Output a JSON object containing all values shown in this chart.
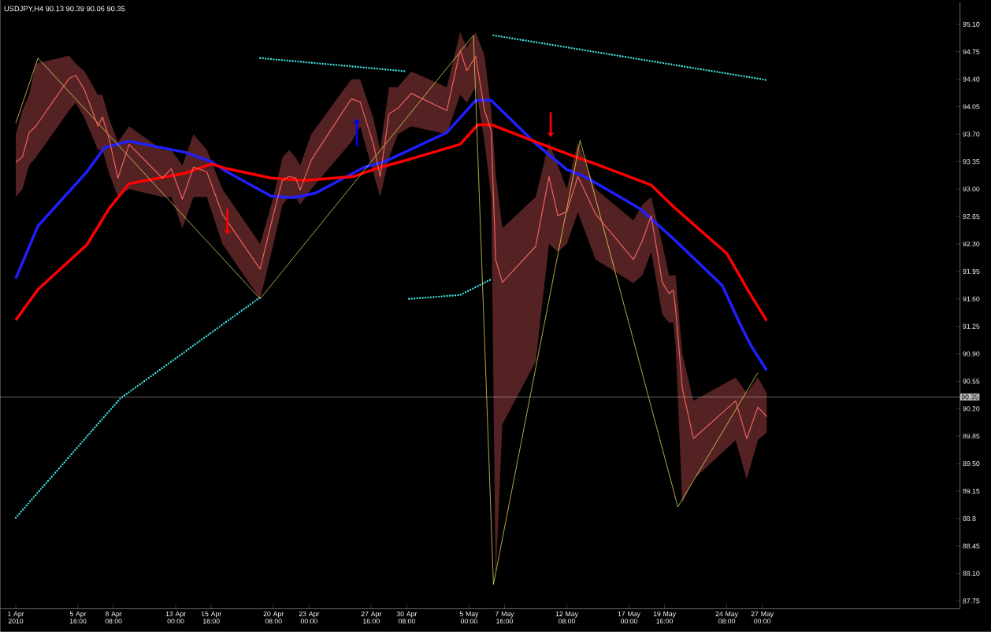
{
  "chart_data": {
    "type": "line",
    "title": "USDJPY,H4  90.13 90.39 90.06 90.35",
    "xlim": [
      "2010-03-30T20:00",
      "2010-06-10T20:00"
    ],
    "ylim": [
      87.65,
      95.38
    ],
    "xticks": [
      {
        "value": "2010-04-01T00:00",
        "label": "1 Apr 2010"
      },
      {
        "value": "2010-04-05T16:00",
        "label": "5 Apr 16:00"
      },
      {
        "value": "2010-04-08T08:00",
        "label": "8 Apr 08:00"
      },
      {
        "value": "2010-04-13T00:00",
        "label": "13 Apr 00:00"
      },
      {
        "value": "2010-04-15T16:00",
        "label": "15 Apr 16:00"
      },
      {
        "value": "2010-04-20T08:00",
        "label": "20 Apr 08:00"
      },
      {
        "value": "2010-04-23T00:00",
        "label": "23 Apr 00:00"
      },
      {
        "value": "2010-04-27T16:00",
        "label": "27 Apr 16:00"
      },
      {
        "value": "2010-04-30T08:00",
        "label": "30 Apr 08:00"
      },
      {
        "value": "2010-05-05T00:00",
        "label": "5 May 00:00"
      },
      {
        "value": "2010-05-07T16:00",
        "label": "7 May 16:00"
      },
      {
        "value": "2010-05-12T08:00",
        "label": "12 May 08:00"
      },
      {
        "value": "2010-05-17T00:00",
        "label": "17 May 00:00"
      },
      {
        "value": "2010-05-19T16:00",
        "label": "19 May 16:00"
      },
      {
        "value": "2010-05-24T08:00",
        "label": "24 May 08:00"
      },
      {
        "value": "2010-05-27T00:00",
        "label": "27 May 00:00"
      }
    ],
    "yticks": [
      87.75,
      {
        "value": 88.1,
        "label": "88.10"
      },
      88.45,
      88.8,
      89.15,
      {
        "value": 89.5,
        "label": "89.50"
      },
      89.85,
      {
        "value": 90.2,
        "label": "90.20"
      },
      90.55,
      {
        "value": 90.9,
        "label": "90.90"
      },
      91.25,
      {
        "value": 91.6,
        "label": "91.60"
      },
      91.95,
      {
        "value": 92.3,
        "label": "92.30"
      },
      92.65,
      {
        "value": 93.0,
        "label": "93.00"
      },
      93.35,
      {
        "value": 93.7,
        "label": "93.70"
      },
      94.05,
      {
        "value": 94.4,
        "label": "94.40"
      },
      94.75,
      {
        "value": 95.1,
        "label": "95.10"
      }
    ],
    "ref_lines": [
      {
        "axis": "y",
        "value": 90.35,
        "label": "90.35",
        "color": "#c0c0c0"
      }
    ],
    "series": [
      {
        "color": "#40e0e0",
        "line_style": "dotted",
        "x": [
          "2010-04-01T00:00",
          "2010-04-08T20:00",
          "2010-04-19T08:00"
        ],
        "values": [
          88.81,
          90.33,
          91.62
        ]
      },
      {
        "color": "#40e0e0",
        "line_style": "dotted",
        "x": [
          "2010-04-19T08:00",
          "2010-04-30T08:00"
        ],
        "values": [
          94.67,
          94.5
        ]
      },
      {
        "color": "#40e0e0",
        "line_style": "dotted",
        "x": [
          "2010-04-30T12:00",
          "2010-05-04T08:00",
          "2010-05-06T16:00"
        ],
        "values": [
          91.6,
          91.65,
          91.85
        ]
      },
      {
        "color": "#40e0e0",
        "line_style": "dotted",
        "x": [
          "2010-05-06T20:00",
          "2010-05-27T08:00"
        ],
        "values": [
          94.96,
          94.39
        ]
      },
      {
        "color": "#2020ff",
        "x": [
          "2010-04-01T00:00",
          "2010-04-02T16:00",
          "2010-04-06T08:00",
          "2010-04-07T16:00",
          "2010-04-09T12:00",
          "2010-04-13T16:00",
          "2010-04-15T16:00",
          "2010-04-16T20:00",
          "2010-04-20T04:00",
          "2010-04-21T20:00",
          "2010-04-23T12:00",
          "2010-04-27T04:00",
          "2010-04-28T16:00",
          "2010-05-03T08:00",
          "2010-05-05T12:00",
          "2010-05-06T16:00",
          "2010-05-10T00:00",
          "2010-05-12T08:00",
          "2010-05-13T16:00",
          "2010-05-17T20:00",
          "2010-05-20T12:00",
          "2010-05-24T00:00",
          "2010-05-25T08:00",
          "2010-05-26T04:00",
          "2010-05-27T08:00"
        ],
        "values": [
          91.86,
          92.53,
          93.22,
          93.53,
          93.61,
          93.47,
          93.35,
          93.22,
          92.91,
          92.89,
          92.95,
          93.28,
          93.35,
          93.72,
          94.13,
          94.13,
          93.58,
          93.25,
          93.16,
          92.75,
          92.34,
          91.77,
          91.28,
          91.0,
          90.69
        ]
      },
      {
        "color": "#ff0000",
        "x": [
          "2010-04-01T00:00",
          "2010-04-02T16:00",
          "2010-04-06T08:00",
          "2010-04-08T00:00",
          "2010-04-09T12:00",
          "2010-04-13T16:00",
          "2010-04-15T16:00",
          "2010-04-16T20:00",
          "2010-04-20T04:00",
          "2010-04-22T16:00",
          "2010-04-26T08:00",
          "2010-04-28T00:00",
          "2010-04-30T08:00",
          "2010-05-04T08:00",
          "2010-05-05T16:00",
          "2010-05-06T16:00",
          "2010-05-10T08:00",
          "2010-05-13T00:00",
          "2010-05-14T16:00",
          "2010-05-18T16:00",
          "2010-05-20T12:00",
          "2010-05-24T08:00",
          "2010-05-26T00:00",
          "2010-05-27T08:00"
        ],
        "values": [
          91.33,
          91.72,
          92.29,
          92.75,
          93.07,
          93.2,
          93.32,
          93.26,
          93.14,
          93.11,
          93.16,
          93.26,
          93.37,
          93.57,
          93.82,
          93.82,
          93.58,
          93.41,
          93.31,
          93.05,
          92.75,
          92.18,
          91.69,
          91.32
        ]
      },
      {
        "color": "#ffff66",
        "x": [
          "2010-04-01T00:00",
          "2010-04-02T16:00",
          "2010-04-19T08:00",
          "2010-05-05T08:00",
          "2010-05-06T20:00",
          "2010-05-13T08:00",
          "2010-05-20T16:00",
          "2010-05-26T16:00"
        ],
        "values": [
          93.84,
          94.67,
          91.6,
          94.96,
          87.96,
          93.62,
          88.95,
          90.66
        ]
      },
      {
        "color": "#f06060",
        "x": [
          "2010-04-01T00:00",
          "2010-04-01T12:00",
          "2010-04-02T00:00",
          "2010-04-02T12:00",
          "2010-04-05T00:00",
          "2010-04-05T12:00",
          "2010-04-06T04:00",
          "2010-04-07T04:00",
          "2010-04-07T12:00",
          "2010-04-08T00:00",
          "2010-04-08T16:00",
          "2010-04-09T12:00",
          "2010-04-12T00:00",
          "2010-04-12T16:00",
          "2010-04-13T12:00",
          "2010-04-14T08:00",
          "2010-04-15T08:00",
          "2010-04-16T12:00",
          "2010-04-19T08:00",
          "2010-04-20T08:00",
          "2010-04-21T00:00",
          "2010-04-21T12:00",
          "2010-04-22T00:00",
          "2010-04-22T08:00",
          "2010-04-23T04:00",
          "2010-04-26T04:00",
          "2010-04-26T20:00",
          "2010-04-27T20:00",
          "2010-04-28T08:00",
          "2010-04-29T00:00",
          "2010-04-29T16:00",
          "2010-04-30T16:00",
          "2010-05-03T08:00",
          "2010-05-04T08:00",
          "2010-05-04T20:00",
          "2010-05-05T12:00",
          "2010-05-06T04:00",
          "2010-05-06T16:00",
          "2010-05-07T00:00",
          "2010-05-07T12:00",
          "2010-05-10T00:00",
          "2010-05-11T00:00",
          "2010-05-11T16:00",
          "2010-05-12T08:00",
          "2010-05-13T04:00",
          "2010-05-14T12:00",
          "2010-05-17T08:00",
          "2010-05-18T00:00",
          "2010-05-18T16:00",
          "2010-05-19T12:00",
          "2010-05-20T00:00",
          "2010-05-20T08:00",
          "2010-05-20T12:00",
          "2010-05-21T00:00",
          "2010-05-21T20:00",
          "2010-05-25T00:00",
          "2010-05-25T20:00",
          "2010-05-26T16:00",
          "2010-05-27T08:00"
        ],
        "values": [
          93.34,
          93.41,
          93.72,
          93.8,
          94.41,
          94.45,
          94.26,
          93.8,
          93.92,
          93.64,
          93.14,
          93.57,
          93.14,
          93.26,
          92.87,
          93.28,
          93.22,
          92.68,
          91.98,
          92.68,
          93.11,
          93.16,
          93.14,
          92.99,
          93.37,
          94.15,
          94.11,
          93.57,
          93.16,
          93.96,
          94.03,
          94.22,
          94.0,
          94.77,
          94.51,
          94.69,
          94.0,
          93.74,
          92.1,
          91.81,
          92.27,
          93.16,
          92.66,
          92.71,
          93.16,
          92.68,
          92.1,
          92.34,
          92.66,
          91.81,
          91.67,
          91.71,
          91.47,
          90.46,
          89.82,
          90.3,
          89.82,
          90.22,
          90.1
        ],
        "lower": [
          92.9,
          93.0,
          93.3,
          93.4,
          94.0,
          94.1,
          93.9,
          93.5,
          93.5,
          93.2,
          92.9,
          93.0,
          92.9,
          92.9,
          92.5,
          92.9,
          92.9,
          92.3,
          91.6,
          92.3,
          92.8,
          92.9,
          92.9,
          92.8,
          93.0,
          93.6,
          93.8,
          93.2,
          92.9,
          93.4,
          93.7,
          93.8,
          93.7,
          94.2,
          94.1,
          94.3,
          93.6,
          92.9,
          88.0,
          90.0,
          90.8,
          92.3,
          92.2,
          92.3,
          92.7,
          92.1,
          91.8,
          91.9,
          92.2,
          91.4,
          91.3,
          91.3,
          91.0,
          89.0,
          89.3,
          89.8,
          89.3,
          89.8,
          89.9
        ],
        "upper": [
          93.7,
          94.0,
          94.2,
          94.6,
          94.7,
          94.6,
          94.5,
          94.2,
          94.2,
          93.9,
          93.6,
          93.8,
          93.5,
          93.5,
          93.3,
          93.7,
          93.5,
          93.0,
          92.3,
          92.9,
          93.4,
          93.5,
          93.4,
          93.3,
          93.7,
          94.4,
          94.4,
          93.9,
          93.5,
          94.3,
          94.3,
          94.5,
          94.3,
          95.0,
          94.8,
          95.0,
          94.7,
          94.0,
          93.2,
          92.5,
          92.9,
          93.6,
          93.3,
          93.0,
          93.6,
          93.0,
          92.6,
          92.8,
          92.9,
          92.3,
          91.9,
          91.9,
          91.9,
          90.9,
          90.3,
          90.6,
          90.4,
          90.6,
          90.4
        ]
      }
    ]
  }
}
